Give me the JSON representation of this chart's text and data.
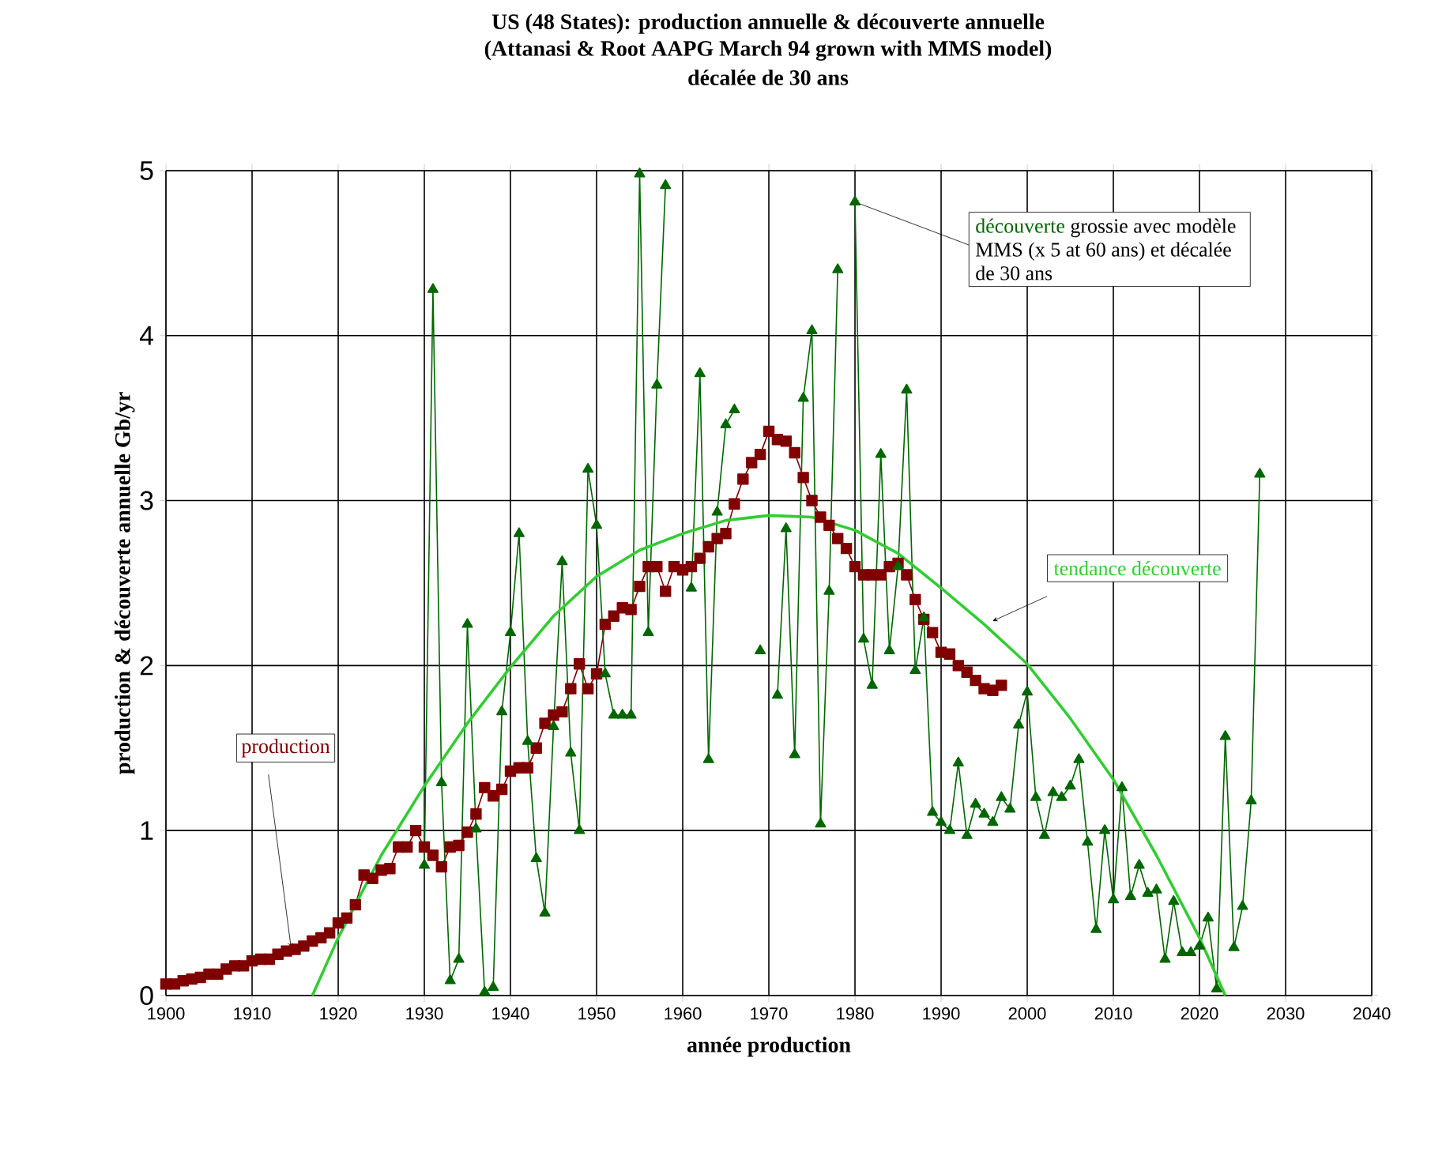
{
  "chart_data": {
    "type": "line",
    "title": "US (48 States): production annuelle & découverte annuelle",
    "subtitle": "(Attanasi & Root AAPG March 94 grown with MMS model)",
    "annotations": [
      "décalée de 30 ans",
      {
        "text": "grossie avec modèle MMS (x 5 at 60 ans) et décalée de 30 ans",
        "x": 1980,
        "y": 4.81
      }
    ],
    "xlabel": "année production",
    "ylabel": "production & découverte annuelle Gb/yr",
    "xlim": [
      1900,
      2040
    ],
    "xticks": [
      1900,
      1910,
      1920,
      1930,
      1940,
      1950,
      1960,
      1970,
      1980,
      1990,
      2000,
      2010,
      2020,
      2030,
      2040
    ],
    "ylim": [
      0,
      5
    ],
    "yticks": [
      0,
      1,
      2,
      3,
      4,
      5
    ],
    "grid": true,
    "line_style": "solid",
    "series": [
      {
        "name": "production",
        "color": "#800000",
        "marker": "square",
        "x": [
          1900,
          1901,
          1902,
          1903,
          1904,
          1905,
          1906,
          1907,
          1908,
          1909,
          1910,
          1911,
          1912,
          1913,
          1914,
          1915,
          1916,
          1917,
          1918,
          1919,
          1920,
          1921,
          1922,
          1923,
          1924,
          1925,
          1926,
          1927,
          1928,
          1929,
          1930,
          1931,
          1932,
          1933,
          1934,
          1935,
          1936,
          1937,
          1938,
          1939,
          1940,
          1941,
          1942,
          1943,
          1944,
          1945,
          1946,
          1947,
          1948,
          1949,
          1950,
          1951,
          1952,
          1953,
          1954,
          1955,
          1956,
          1957,
          1958,
          1959,
          1960,
          1961,
          1962,
          1963,
          1964,
          1965,
          1966,
          1967,
          1968,
          1969,
          1970,
          1971,
          1972,
          1973,
          1974,
          1975,
          1976,
          1977,
          1978,
          1979,
          1980,
          1981,
          1982,
          1983,
          1984,
          1985,
          1986,
          1987,
          1988,
          1989,
          1990,
          1991,
          1992,
          1993,
          1994,
          1995,
          1996,
          1997
        ],
        "values": [
          0.07,
          0.07,
          0.09,
          0.1,
          0.11,
          0.13,
          0.13,
          0.16,
          0.18,
          0.18,
          0.21,
          0.22,
          0.22,
          0.25,
          0.27,
          0.28,
          0.3,
          0.33,
          0.35,
          0.38,
          0.44,
          0.47,
          0.55,
          0.73,
          0.71,
          0.76,
          0.77,
          0.9,
          0.9,
          1.0,
          0.9,
          0.85,
          0.78,
          0.9,
          0.91,
          0.99,
          1.1,
          1.26,
          1.21,
          1.25,
          1.36,
          1.38,
          1.38,
          1.5,
          1.65,
          1.7,
          1.72,
          1.86,
          2.01,
          1.86,
          1.95,
          2.25,
          2.3,
          2.35,
          2.34,
          2.48,
          2.6,
          2.6,
          2.45,
          2.6,
          2.58,
          2.6,
          2.65,
          2.72,
          2.77,
          2.8,
          2.98,
          3.13,
          3.23,
          3.28,
          3.42,
          3.37,
          3.36,
          3.29,
          3.14,
          3.0,
          2.9,
          2.85,
          2.77,
          2.71,
          2.6,
          2.55,
          2.55,
          2.55,
          2.6,
          2.62,
          2.55,
          2.4,
          2.28,
          2.2,
          2.08,
          2.07,
          2.0,
          1.96,
          1.91,
          1.86,
          1.85,
          1.88
        ]
      },
      {
        "name": "découverte",
        "color": "#006600",
        "marker": "triangle",
        "x": [
          1930,
          1931,
          1932,
          1933,
          1934,
          1935,
          1936,
          1937,
          1938,
          1939,
          1940,
          1941,
          1942,
          1943,
          1944,
          1945,
          1946,
          1947,
          1948,
          1949,
          1950,
          1951,
          1952,
          1953,
          1954,
          1955,
          1956,
          1957,
          1958,
          1959,
          1960,
          1961,
          1962,
          1963,
          1964,
          1965,
          1966,
          1967,
          1968,
          1969,
          1970,
          1971,
          1972,
          1973,
          1974,
          1975,
          1976,
          1977,
          1978,
          1979,
          1980,
          1981,
          1982,
          1983,
          1984,
          1985,
          1986,
          1987,
          1988,
          1989,
          1990,
          1991,
          1992,
          1993,
          1994,
          1995,
          1996,
          1997,
          1998,
          1999,
          2000,
          2001,
          2002,
          2003,
          2004,
          2005,
          2006,
          2007,
          2008,
          2009,
          2010,
          2011,
          2012,
          2013,
          2014,
          2015,
          2016,
          2017,
          2018,
          2019,
          2020,
          2021,
          2022,
          2023,
          2024,
          2025,
          2026,
          2027
        ],
        "values": [
          0.79,
          4.28,
          1.29,
          0.09,
          0.22,
          2.25,
          1.01,
          0.02,
          0.05,
          1.72,
          2.2,
          2.8,
          1.54,
          0.83,
          0.5,
          1.63,
          2.63,
          1.47,
          1.0,
          3.19,
          2.85,
          1.95,
          1.7,
          1.7,
          1.7,
          4.98,
          2.2,
          3.7,
          4.91,
          null,
          null,
          2.47,
          3.77,
          1.43,
          2.93,
          3.46,
          3.55,
          null,
          null,
          2.09,
          null,
          1.82,
          2.83,
          1.46,
          3.62,
          4.03,
          1.04,
          2.45,
          4.4,
          null,
          4.81,
          2.16,
          1.88,
          3.28,
          2.09,
          2.6,
          3.67,
          1.97,
          2.29,
          1.11,
          1.05,
          1.0,
          1.41,
          0.97,
          1.16,
          1.1,
          1.05,
          1.2,
          1.13,
          1.64,
          1.84,
          1.2,
          0.97,
          1.23,
          1.2,
          1.27,
          1.43,
          0.93,
          0.4,
          1.0,
          0.58,
          1.26,
          0.6,
          0.79,
          0.62,
          0.64,
          0.22,
          0.57,
          0.26,
          0.26,
          0.3,
          0.47,
          0.04,
          1.57,
          0.29,
          0.54,
          1.18,
          3.16
        ]
      },
      {
        "name": "tendance découverte",
        "color": "#33cc33",
        "marker": "none",
        "x": [
          1917,
          1920,
          1925,
          1930,
          1935,
          1940,
          1945,
          1950,
          1955,
          1960,
          1965,
          1970,
          1975,
          1980,
          1985,
          1990,
          1995,
          2000,
          2005,
          2010,
          2015,
          2020,
          2023
        ],
        "values": [
          0,
          0.35,
          0.85,
          1.27,
          1.65,
          1.99,
          2.3,
          2.54,
          2.7,
          2.8,
          2.88,
          2.91,
          2.9,
          2.82,
          2.68,
          2.47,
          2.25,
          2.01,
          1.68,
          1.31,
          0.85,
          0.35,
          0
        ]
      }
    ]
  }
}
